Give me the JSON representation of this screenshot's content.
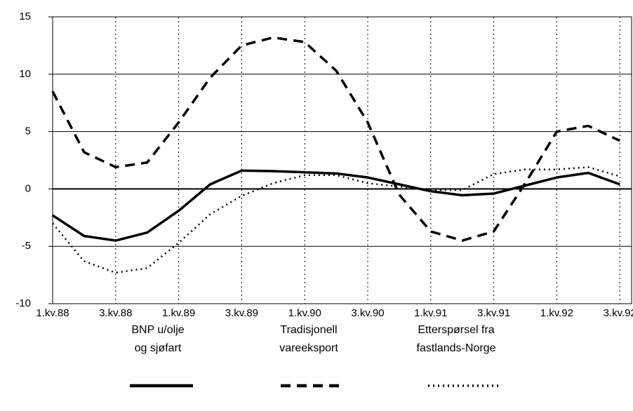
{
  "chart_data": {
    "type": "line",
    "categories": [
      "1.kv.88",
      null,
      "3.kv.88",
      null,
      "1.kv.89",
      null,
      "3.kv.89",
      null,
      "1.kv.90",
      null,
      "3.kv.90",
      null,
      "1.kv.91",
      null,
      "3.kv.91",
      null,
      "1.kv.92",
      null,
      "3.kv.92"
    ],
    "series": [
      {
        "name": "BNP u/olje\nog sjøfart",
        "color": "#000000",
        "dash": "solid",
        "values": [
          -2.3,
          -4.1,
          -4.5,
          -3.8,
          -1.9,
          0.4,
          1.6,
          1.55,
          1.45,
          1.35,
          1.0,
          0.4,
          -0.2,
          -0.55,
          -0.4,
          0.3,
          1.0,
          1.4,
          0.4
        ]
      },
      {
        "name": "Tradisjonell\nvareeksport",
        "color": "#000000",
        "dash": "dashed",
        "values": [
          8.5,
          3.2,
          1.9,
          2.3,
          5.8,
          9.7,
          12.5,
          13.2,
          12.8,
          10.3,
          5.8,
          -0.5,
          -3.7,
          -4.5,
          -3.7,
          0.5,
          5.0,
          5.5,
          4.2
        ]
      },
      {
        "name": "Etterspørsel fra\nfastlands-Norge",
        "color": "#000000",
        "dash": "dotted",
        "values": [
          -3.0,
          -6.3,
          -7.3,
          -6.9,
          -4.7,
          -2.2,
          -0.6,
          0.5,
          1.2,
          1.2,
          0.5,
          0.2,
          -0.1,
          -0.1,
          1.3,
          1.7,
          1.7,
          1.9,
          1.1
        ]
      }
    ],
    "ylim": [
      -10,
      15
    ],
    "yticks": [
      -10,
      -5,
      0,
      5,
      10,
      15
    ],
    "grid": true
  }
}
